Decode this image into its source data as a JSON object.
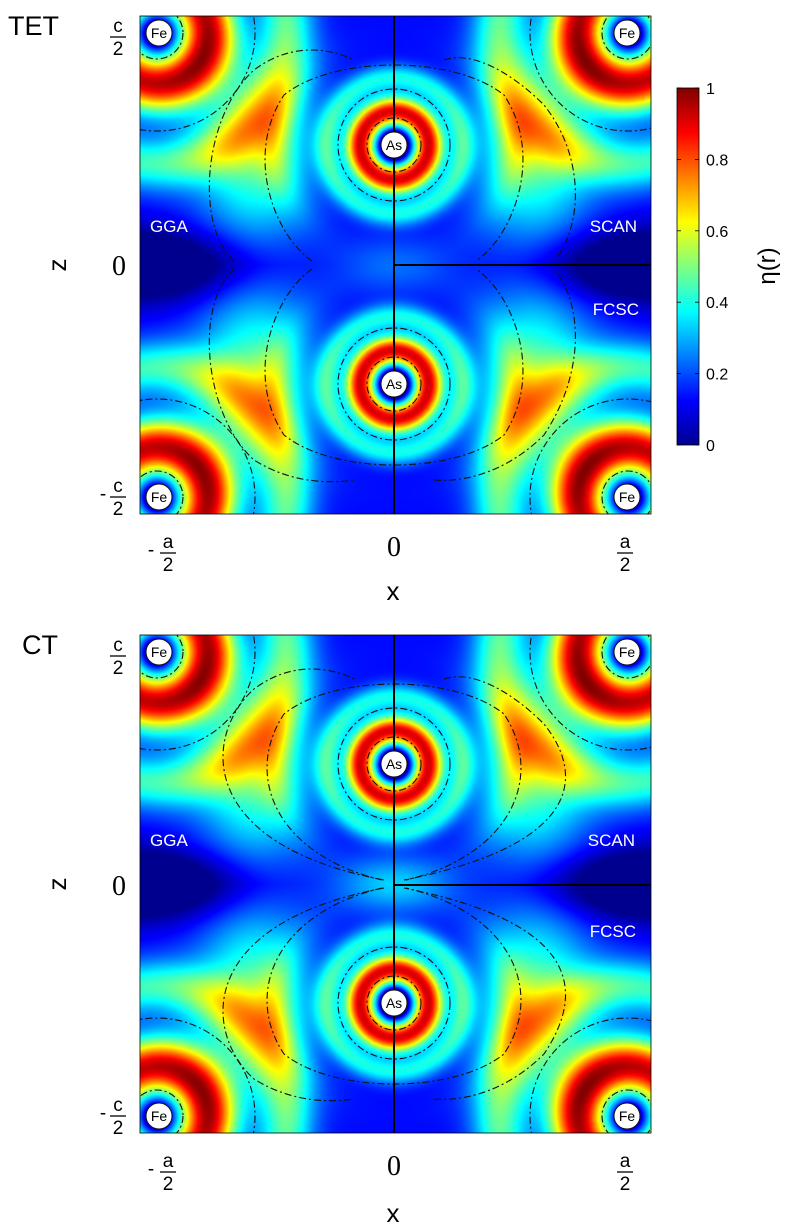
{
  "panels": [
    {
      "title": "TET",
      "xlabel": "x",
      "ylabel": "z",
      "x_ticks": {
        "left": {
          "sign": "-",
          "num": "a",
          "den": "2"
        },
        "mid": "0",
        "right": {
          "sign": "",
          "num": "a",
          "den": "2"
        }
      },
      "y_ticks": {
        "top": {
          "sign": "",
          "num": "c",
          "den": "2"
        },
        "mid": "0",
        "bottom": {
          "sign": "-",
          "num": "c",
          "den": "2"
        }
      },
      "region_labels": {
        "left": "GGA",
        "upper_right": "SCAN",
        "lower_right": "FCSC"
      },
      "atoms": {
        "corner": "Fe",
        "center": "As"
      },
      "pinch": 0.0
    },
    {
      "title": "CT",
      "xlabel": "x",
      "ylabel": "z",
      "x_ticks": {
        "left": {
          "sign": "-",
          "num": "a",
          "den": "2"
        },
        "mid": "0",
        "right": {
          "sign": "",
          "num": "a",
          "den": "2"
        }
      },
      "y_ticks": {
        "top": {
          "sign": "",
          "num": "c",
          "den": "2"
        },
        "mid": "0",
        "bottom": {
          "sign": "-",
          "num": "c",
          "den": "2"
        }
      },
      "region_labels": {
        "left": "GGA",
        "upper_right": "SCAN",
        "lower_right": "FCSC"
      },
      "atoms": {
        "corner": "Fe",
        "center": "As"
      },
      "pinch": 1.0
    }
  ],
  "colorbar": {
    "label": "η(r)",
    "min": 0,
    "max": 1,
    "ticks": [
      "0",
      "0.2",
      "0.4",
      "0.6",
      "0.8",
      "1"
    ]
  },
  "chart_data": [
    {
      "type": "heatmap",
      "title": "TET",
      "xlabel": "x",
      "ylabel": "z",
      "x_ticks": [
        "-a/2",
        "0",
        "a/2"
      ],
      "y_ticks": [
        "-c/2",
        "0",
        "c/2"
      ],
      "colorbar_label": "η(r)",
      "colorbar_range": [
        0,
        1
      ],
      "atoms": [
        {
          "name": "Fe",
          "x": "-a/2",
          "z": "c/2"
        },
        {
          "name": "Fe",
          "x": "a/2",
          "z": "c/2"
        },
        {
          "name": "Fe",
          "x": "-a/2",
          "z": "-c/2"
        },
        {
          "name": "Fe",
          "x": "a/2",
          "z": "-c/2"
        },
        {
          "name": "As",
          "x": "0",
          "z": "c/4"
        },
        {
          "name": "As",
          "x": "0",
          "z": "-c/4"
        }
      ],
      "regions": [
        "GGA",
        "SCAN",
        "FCSC"
      ]
    },
    {
      "type": "heatmap",
      "title": "CT",
      "xlabel": "x",
      "ylabel": "z",
      "x_ticks": [
        "-a/2",
        "0",
        "a/2"
      ],
      "y_ticks": [
        "-c/2",
        "0",
        "c/2"
      ],
      "colorbar_label": "η(r)",
      "colorbar_range": [
        0,
        1
      ],
      "atoms": [
        {
          "name": "Fe",
          "x": "-a/2",
          "z": "c/2"
        },
        {
          "name": "Fe",
          "x": "a/2",
          "z": "c/2"
        },
        {
          "name": "Fe",
          "x": "-a/2",
          "z": "-c/2"
        },
        {
          "name": "Fe",
          "x": "a/2",
          "z": "-c/2"
        },
        {
          "name": "As",
          "x": "0",
          "z": "c/4"
        },
        {
          "name": "As",
          "x": "0",
          "z": "-c/4"
        }
      ],
      "regions": [
        "GGA",
        "SCAN",
        "FCSC"
      ]
    }
  ]
}
